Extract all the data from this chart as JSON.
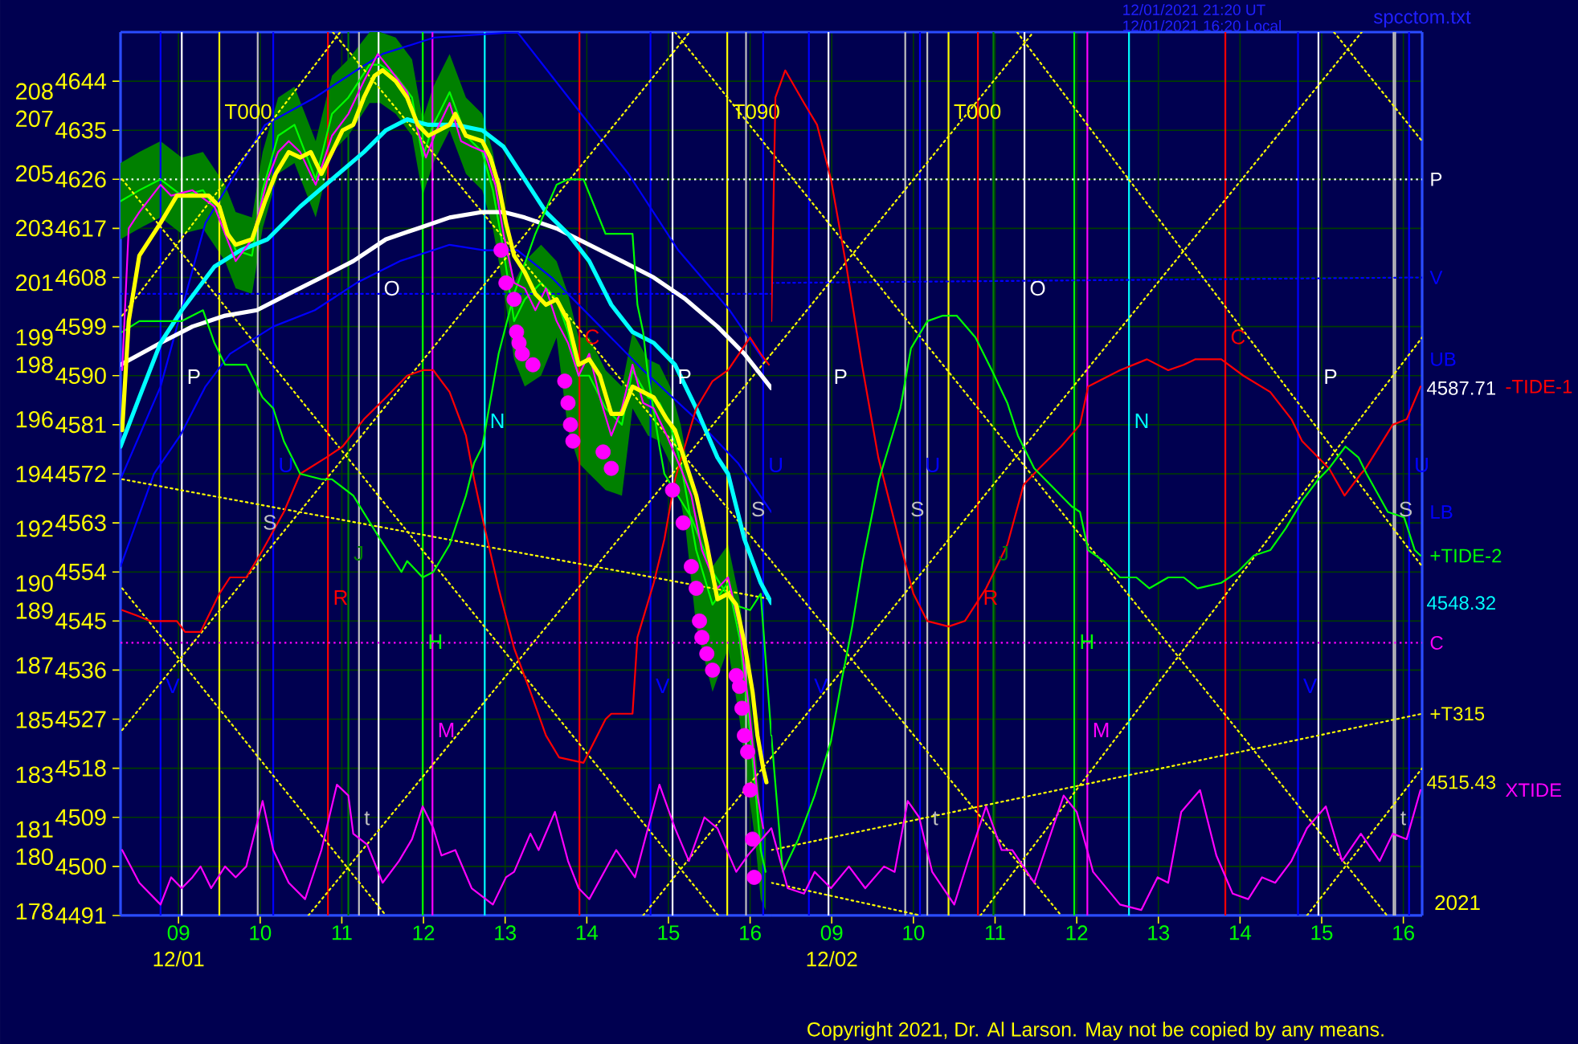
{
  "chart_data": [
    {
      "type": "line",
      "xlabel": "12/01",
      "xlim": [
        8.29,
        16.26
      ],
      "xticks": [
        {
          "value": 9,
          "label": "09"
        },
        10,
        11,
        12,
        13,
        14,
        15,
        16
      ],
      "ylim": [
        4491,
        4653
      ],
      "yticks": [
        4491,
        4500,
        4509,
        4518,
        4527,
        4536,
        4545,
        4554,
        4563,
        4572,
        4581,
        4590,
        4599,
        4608,
        4617,
        4626,
        4635,
        4644
      ],
      "y2lim": [
        177.85,
        210.17
      ],
      "y2ticks": [
        178,
        180,
        181,
        183,
        185,
        187,
        189,
        190,
        192,
        194,
        196,
        198,
        199,
        201,
        203,
        205,
        207,
        208
      ],
      "grid": true,
      "series": [
        {
          "color": "#00ff00",
          "x": [
            8.29,
            8.52,
            8.78,
            9.04,
            9.3,
            9.57,
            9.7,
            9.9,
            10.03,
            10.22,
            10.42,
            10.68,
            10.88,
            11.08,
            11.34,
            11.47,
            11.66,
            11.86,
            11.99,
            12.12,
            12.32,
            12.52,
            12.72,
            12.85,
            12.98,
            13.11,
            13.24,
            13.44,
            13.63,
            13.77,
            13.9,
            14.03,
            14.23,
            14.43,
            14.56,
            14.75,
            14.89,
            15.02,
            15.15,
            15.21,
            15.34,
            15.54,
            15.73,
            15.87,
            15.97,
            16.06,
            16.13,
            16.19
          ],
          "values": [
            4622,
            4624,
            4626,
            4623,
            4624,
            4618,
            4613,
            4612,
            4624,
            4634,
            4636,
            4626,
            4638,
            4641,
            4647,
            4647,
            4645,
            4641,
            4630,
            4636,
            4642,
            4634,
            4631,
            4624,
            4613,
            4600,
            4604,
            4607,
            4604,
            4598,
            4590,
            4590,
            4584,
            4581,
            4591,
            4586,
            4585,
            4581,
            4574,
            4569,
            4558,
            4548,
            4552,
            4542,
            4529,
            4515,
            4503,
            4499
          ],
          "lower": [
            4615,
            4617,
            4619,
            4616,
            4617,
            4611,
            4606,
            4605,
            4617,
            4627,
            4629,
            4619,
            4631,
            4634,
            4640,
            4640,
            4638,
            4634,
            4623,
            4629,
            4635,
            4627,
            4624,
            4617,
            4606,
            4593,
            4588,
            4590,
            4597,
            4580,
            4574,
            4572,
            4569,
            4568,
            4584,
            4579,
            4578,
            4574,
            4567,
            4562,
            4544,
            4532,
            4540,
            4527,
            4515,
            4505,
            4494,
            4492
          ],
          "upper": [
            4629,
            4631,
            4633,
            4630,
            4631,
            4625,
            4620,
            4619,
            4631,
            4641,
            4643,
            4633,
            4645,
            4648,
            4653,
            4653,
            4652,
            4648,
            4637,
            4643,
            4649,
            4641,
            4638,
            4631,
            4620,
            4607,
            4611,
            4614,
            4611,
            4605,
            4597,
            4597,
            4591,
            4588,
            4598,
            4593,
            4592,
            4588,
            4581,
            4576,
            4565,
            4555,
            4559,
            4549,
            4536,
            4522,
            4510,
            4506
          ]
        },
        {
          "name": "UB",
          "color": "#0000ff",
          "x": [
            8.29,
            8.78,
            9.33,
            10.06,
            10.67,
            11.18,
            11.5,
            12.13,
            13.15,
            13.88,
            14.51,
            15.12,
            15.75,
            16.16
          ],
          "values": [
            4571,
            4588,
            4618,
            4636,
            4641,
            4646,
            4649,
            4652,
            4653,
            4639,
            4627,
            4613,
            4602,
            4593
          ]
        },
        {
          "name": "LB",
          "color": "#0000ff",
          "x": [
            8.29,
            8.7,
            9.02,
            9.33,
            9.63,
            10.16,
            10.67,
            11.18,
            11.71,
            12.32,
            12.74,
            13.15,
            13.57,
            14.1,
            14.69,
            15.34,
            15.85,
            16.26
          ],
          "values": [
            4555,
            4572,
            4579,
            4588,
            4594,
            4599,
            4602,
            4607,
            4611,
            4614,
            4613,
            4613,
            4608,
            4600,
            4591,
            4582,
            4574,
            4565
          ]
        },
        {
          "color": "#0000ff",
          "line_style": "dotted",
          "x": [
            8.29,
            16.26
          ],
          "values": [
            4605,
            4605
          ]
        },
        {
          "color": "#ffff00",
          "line_style": "dotted",
          "x": [
            8.31,
            10.98
          ],
          "values": [
            4601,
            4653
          ]
        },
        {
          "color": "#ffff00",
          "line_style": "dotted",
          "x": [
            8.31,
            15.26
          ],
          "values": [
            4525,
            4653
          ]
        },
        {
          "color": "#ffff00",
          "line_style": "dotted",
          "x": [
            10.59,
            16.26
          ],
          "values": [
            4491,
            4594
          ]
        },
        {
          "color": "#ffff00",
          "line_style": "dotted",
          "x": [
            14.69,
            16.26
          ],
          "values": [
            4491,
            4520
          ]
        },
        {
          "color": "#ffff00",
          "line_style": "dotted",
          "x": [
            8.31,
            15.61
          ],
          "values": [
            4626,
            4491
          ]
        },
        {
          "color": "#ffff00",
          "line_style": "dotted",
          "x": [
            8.31,
            11.54
          ],
          "values": [
            4551,
            4491
          ]
        },
        {
          "color": "#ffff00",
          "line_style": "dotted",
          "x": [
            10.89,
            16.26
          ],
          "values": [
            4653,
            4556
          ]
        },
        {
          "color": "#ffff00",
          "line_style": "dotted",
          "x": [
            15.08,
            16.26
          ],
          "values": [
            4653,
            4631
          ]
        },
        {
          "color": "#ffff00",
          "line_style": "dotted",
          "x": [
            8.31,
            16.26
          ],
          "values": [
            4571,
            4549
          ]
        },
        {
          "color": "#ffffff",
          "x": [
            8.29,
            8.78,
            9.17,
            9.57,
            9.96,
            10.35,
            10.75,
            11.14,
            11.54,
            11.93,
            12.32,
            12.72,
            12.98,
            13.24,
            13.63,
            14.03,
            14.43,
            14.82,
            15.21,
            15.6,
            15.93,
            16.26
          ],
          "values": [
            4592,
            4596,
            4599,
            4601,
            4602,
            4605,
            4608,
            4611,
            4615,
            4617,
            4619,
            4620,
            4620,
            4619,
            4617,
            4614,
            4611,
            4608,
            4604,
            4599,
            4594,
            4587.71
          ]
        },
        {
          "color": "#00ffff",
          "x": [
            8.29,
            8.52,
            8.78,
            9.04,
            9.44,
            9.76,
            10.09,
            10.49,
            10.88,
            11.27,
            11.54,
            11.8,
            12.06,
            12.39,
            12.72,
            12.98,
            13.24,
            13.5,
            13.77,
            14.03,
            14.3,
            14.56,
            14.82,
            15.08,
            15.34,
            15.6,
            15.73,
            15.93,
            16.13,
            16.26
          ],
          "values": [
            4577,
            4586,
            4596,
            4602,
            4610,
            4613,
            4615,
            4621,
            4626,
            4631,
            4635,
            4637,
            4636,
            4636,
            4635,
            4632,
            4626,
            4620,
            4616,
            4611,
            4603,
            4598,
            4596,
            4592,
            4584,
            4575,
            4572,
            4560,
            4552,
            4548.32
          ]
        },
        {
          "color": "#ff0000",
          "x": [
            8.31,
            8.49,
            8.65,
            8.98,
            9.08,
            9.27,
            9.5,
            9.63,
            9.83,
            10.03,
            10.29,
            10.49,
            10.81,
            11.01,
            11.27,
            11.54,
            11.8,
            11.99,
            12.12,
            12.32,
            12.52,
            12.62,
            12.72,
            12.92,
            13.11,
            13.31,
            13.5,
            13.66,
            13.96,
            14.23,
            14.3,
            14.56,
            14.62,
            14.82,
            14.95,
            15.08,
            15.34,
            15.54,
            15.73,
            16.0,
            16.13,
            16.23
          ],
          "values": [
            4547,
            4546,
            4545,
            4545,
            4543,
            4543,
            4550,
            4553,
            4553,
            4558,
            4565,
            4572,
            4575,
            4577,
            4582,
            4586,
            4590,
            4591,
            4591,
            4587,
            4579,
            4571,
            4564,
            4551,
            4540,
            4532,
            4524,
            4520,
            4519,
            4527,
            4528,
            4528,
            4542,
            4552,
            4560,
            4571,
            4584,
            4589,
            4591,
            4597,
            4594,
            4592
          ]
        },
        {
          "color": "#00ff00",
          "x": [
            8.31,
            8.52,
            9.04,
            9.3,
            9.44,
            9.57,
            9.83,
            10.03,
            10.16,
            10.29,
            10.49,
            10.75,
            10.88,
            11.14,
            11.47,
            11.73,
            11.8,
            11.99,
            12.12,
            12.32,
            12.52,
            12.62,
            12.72,
            12.92,
            13.11,
            13.37,
            13.63,
            13.77,
            13.96,
            14.23,
            14.56,
            14.62,
            14.69,
            14.75,
            14.89,
            14.95,
            15.28,
            15.54,
            15.8,
            16.0,
            16.13,
            16.26
          ],
          "values": [
            4598,
            4600,
            4600,
            4602,
            4596,
            4592,
            4592,
            4586,
            4584,
            4578,
            4572,
            4571,
            4571,
            4568,
            4560,
            4554,
            4556,
            4553,
            4554,
            4559,
            4568,
            4574,
            4577,
            4594,
            4605,
            4616,
            4625,
            4626,
            4626,
            4616,
            4616,
            4603,
            4598,
            4590,
            4577,
            4572,
            4564,
            4554,
            4548,
            4547,
            4550,
            4524
          ]
        },
        {
          "color": "#ff00ff",
          "x": [
            8.31,
            8.52,
            8.78,
            8.91,
            9.04,
            9.17,
            9.27,
            9.4,
            9.57,
            9.7,
            9.83,
            10.03,
            10.16,
            10.35,
            10.55,
            10.75,
            10.94,
            11.08,
            11.14,
            11.31,
            11.5,
            11.7,
            11.86,
            11.99,
            12.12,
            12.22,
            12.39,
            12.59,
            12.85,
            13.01,
            13.11,
            13.31,
            13.41,
            13.61,
            13.77,
            13.9,
            14.03,
            14.36,
            14.59,
            14.89,
            15.08,
            15.25,
            15.44,
            15.6,
            15.83,
            15.97,
            16.26
          ],
          "values": [
            4503,
            4497,
            4493,
            4498,
            4496,
            4498,
            4500,
            4496,
            4500,
            4498,
            4500,
            4512,
            4503,
            4497,
            4494,
            4503,
            4515,
            4513,
            4506,
            4504,
            4497,
            4501,
            4505,
            4511,
            4507,
            4502,
            4503,
            4496,
            4493,
            4498,
            4499,
            4506,
            4503,
            4510,
            4501,
            4496,
            4494,
            4503,
            4498,
            4515,
            4507,
            4501,
            4509,
            4507,
            4499,
            4502,
            4507
          ]
        },
        {
          "color": "#ff00ff",
          "x": [
            8.31,
            8.39,
            8.52,
            8.78,
            8.91,
            9.17,
            9.44,
            9.57,
            9.7,
            9.9,
            10.09,
            10.22,
            10.35,
            10.49,
            10.68,
            10.88,
            11.08,
            11.27,
            11.44,
            11.6,
            11.8,
            11.93,
            12.03,
            12.16,
            12.32,
            12.46,
            12.59,
            12.75,
            12.88,
            12.98,
            13.11,
            13.24,
            13.37,
            13.5,
            13.63,
            13.77,
            13.9,
            14.03,
            14.16,
            14.3,
            14.43,
            14.56,
            14.69,
            14.82,
            14.98,
            15.15,
            15.28,
            15.41,
            15.6,
            15.73,
            15.87,
            16.0,
            16.09,
            16.16
          ],
          "values": [
            4591,
            4617,
            4620,
            4625,
            4623,
            4624,
            4621,
            4616,
            4611,
            4615,
            4626,
            4631,
            4633,
            4631,
            4625,
            4634,
            4638,
            4644,
            4649,
            4646,
            4642,
            4635,
            4630,
            4635,
            4640,
            4633,
            4632,
            4631,
            4625,
            4616,
            4607,
            4606,
            4602,
            4606,
            4600,
            4596,
            4590,
            4594,
            4586,
            4579,
            4584,
            4592,
            4585,
            4584,
            4579,
            4573,
            4568,
            4558,
            4551,
            4553,
            4544,
            4527,
            4513,
            4507
          ]
        },
        {
          "type": "scatter",
          "marker": "circle",
          "color": "#ff00ff",
          "x": [
            12.95,
            13.01,
            13.11,
            13.14,
            13.17,
            13.21,
            13.34,
            13.73,
            13.77,
            13.8,
            13.83,
            14.2,
            14.3,
            15.05,
            15.18,
            15.28,
            15.34,
            15.38,
            15.41,
            15.47,
            15.54,
            15.83,
            15.87,
            15.9,
            15.93,
            15.97,
            16.0,
            16.03,
            16.05
          ],
          "values": [
            4613,
            4607,
            4604,
            4598,
            4596,
            4594,
            4592,
            4589,
            4585,
            4581,
            4578,
            4576,
            4573,
            4569,
            4563,
            4555,
            4551,
            4545,
            4542,
            4539,
            4536,
            4535,
            4533,
            4529,
            4524,
            4521,
            4514,
            4505,
            4498
          ]
        },
        {
          "color": "#ffff00",
          "x": [
            8.31,
            8.39,
            8.52,
            8.78,
            8.98,
            9.17,
            9.37,
            9.5,
            9.6,
            9.7,
            9.9,
            10.06,
            10.19,
            10.35,
            10.49,
            10.62,
            10.75,
            10.88,
            11.01,
            11.14,
            11.27,
            11.4,
            11.5,
            11.66,
            11.8,
            11.93,
            12.06,
            12.19,
            12.32,
            12.39,
            12.52,
            12.72,
            12.82,
            12.92,
            13.01,
            13.11,
            13.24,
            13.37,
            13.5,
            13.63,
            13.77,
            13.9,
            14.03,
            14.16,
            14.3,
            14.43,
            14.56,
            14.69,
            14.82,
            14.98,
            15.08,
            15.21,
            15.34,
            15.47,
            15.6,
            15.73,
            15.83,
            15.93,
            16.03,
            16.09,
            16.16,
            16.2
          ],
          "values": [
            4580,
            4600,
            4612,
            4618,
            4623,
            4623,
            4623,
            4621,
            4616,
            4614,
            4615,
            4622,
            4627,
            4631,
            4630,
            4631,
            4627,
            4631,
            4635,
            4636,
            4641,
            4645,
            4646,
            4644,
            4641,
            4636,
            4634,
            4635,
            4636,
            4638,
            4634,
            4633,
            4630,
            4625,
            4618,
            4612,
            4609,
            4605,
            4603,
            4604,
            4600,
            4592,
            4593,
            4590,
            4583,
            4583,
            4588,
            4587,
            4586,
            4582,
            4580,
            4574,
            4568,
            4559,
            4549,
            4550,
            4548,
            4541,
            4532,
            4524,
            4518,
            4515.43
          ]
        }
      ],
      "ref_lines": [
        {
          "axis": "x",
          "value": 8.78,
          "label": "V",
          "color": "#0000ff"
        },
        {
          "axis": "x",
          "value": 9.04,
          "label": "P",
          "color": "#ffffff"
        },
        {
          "axis": "x",
          "value": 9.5,
          "label": "T000",
          "color": "#ffff00"
        },
        {
          "axis": "x",
          "value": 9.97,
          "label": "S",
          "color": "#c0c0c0"
        },
        {
          "axis": "x",
          "value": 10.16,
          "label": "U",
          "color": "#0000ff"
        },
        {
          "axis": "x",
          "value": 10.83,
          "label": "R",
          "color": "#ff0000"
        },
        {
          "axis": "x",
          "value": 11.08,
          "label": "J",
          "color": "#008000"
        },
        {
          "axis": "x",
          "value": 11.21,
          "label": "t",
          "color": "#c0c0c0"
        },
        {
          "axis": "x",
          "value": 11.45,
          "label": "O",
          "color": "#ffffff"
        },
        {
          "axis": "x",
          "value": 11.99,
          "label": "H",
          "color": "#00ff00"
        },
        {
          "axis": "x",
          "value": 12.11,
          "label": "M",
          "color": "#ff00ff"
        },
        {
          "axis": "x",
          "value": 12.75,
          "label": "N",
          "color": "#00ffff"
        },
        {
          "axis": "x",
          "value": 13.91,
          "label": "C",
          "color": "#ff0000"
        },
        {
          "axis": "x",
          "value": 14.78,
          "label": "V",
          "color": "#0000ff"
        },
        {
          "axis": "x",
          "value": 15.05,
          "label": "P",
          "color": "#ffffff"
        },
        {
          "axis": "x",
          "value": 15.72,
          "label": "T090",
          "color": "#ffff00"
        },
        {
          "axis": "x",
          "value": 15.95,
          "label": "S",
          "color": "#c0c0c0"
        },
        {
          "axis": "x",
          "value": 16.16,
          "label": "U",
          "color": "#0000ff"
        },
        {
          "axis": "y",
          "value": 4626,
          "color": "#ffffff",
          "line_style": "dotted"
        },
        {
          "axis": "y",
          "value": 4541,
          "color": "#ff00ff",
          "line_style": "dotted"
        }
      ]
    },
    {
      "type": "line",
      "xlabel": "12/02",
      "annotations": [
        "12/01/2021 21:20 UT",
        "12/01/2021 16:20 Local",
        "spcctom.txt",
        "Copyright 2021, Dr. Al Larson. May not be copied by any means.",
        "2021"
      ],
      "xlim": [
        8.26,
        16.23
      ],
      "xticks": [
        {
          "value": 9,
          "label": "09"
        },
        10,
        11,
        12,
        13,
        14,
        15,
        16
      ],
      "ylim": [
        4491,
        4653
      ],
      "yticks": [
        4491,
        4500,
        4509,
        4518,
        4527,
        4536,
        4545,
        4554,
        4563,
        4572,
        4581,
        4590,
        4599,
        4608,
        4617,
        4626,
        4635,
        4644
      ],
      "y2lim": [
        4515.43,
        4587.71
      ],
      "y2ticks": [
        {
          "value": 4515.43,
          "label": "4515.43"
        },
        {
          "value": 4548.32,
          "label": "4548.32"
        },
        {
          "value": 4587.71,
          "label": "4587.71"
        }
      ],
      "tick_labels": "x",
      "grid": true,
      "series": [
        {
          "name": "V",
          "color": "#0000ff",
          "line_style": "dotted",
          "x": [
            8.26,
            16.23
          ],
          "values": [
            4607,
            4608
          ]
        },
        {
          "color": "#ffff00",
          "line_style": "dotted",
          "x": [
            8.26,
            11.47
          ],
          "values": [
            4594,
            4653
          ]
        },
        {
          "color": "#ffff00",
          "line_style": "dotted",
          "x": [
            8.26,
            15.49
          ],
          "values": [
            4520,
            4653
          ]
        },
        {
          "color": "#ffff00",
          "line_style": "dotted",
          "x": [
            10.82,
            16.23
          ],
          "values": [
            4491,
            4597
          ]
        },
        {
          "color": "#ffff00",
          "line_style": "dotted",
          "x": [
            14.82,
            16.23
          ],
          "values": [
            4491,
            4518
          ]
        },
        {
          "color": "#ffff00",
          "line_style": "dotted",
          "x": [
            8.26,
            11.81
          ],
          "values": [
            4556,
            4491
          ]
        },
        {
          "color": "#ffff00",
          "line_style": "dotted",
          "x": [
            8.26,
            15.8
          ],
          "values": [
            4631,
            4491
          ]
        },
        {
          "color": "#ffff00",
          "line_style": "dotted",
          "x": [
            11.27,
            16.23
          ],
          "values": [
            4653,
            4555
          ]
        },
        {
          "color": "#ffff00",
          "line_style": "dotted",
          "x": [
            15.15,
            16.23
          ],
          "values": [
            4653,
            4633
          ]
        },
        {
          "color": "#ffff00",
          "line_style": "dotted",
          "x": [
            8.26,
            10.09
          ],
          "values": [
            4497,
            4491
          ]
        },
        {
          "name": "+T315",
          "color": "#ffff00",
          "line_style": "dotted",
          "x": [
            8.26,
            16.23
          ],
          "values": [
            4503,
            4528
          ]
        },
        {
          "name": "-TIDE-1",
          "color": "#ff0000",
          "x": [
            8.26,
            8.31,
            8.43,
            8.66,
            8.82,
            8.99,
            9.18,
            9.37,
            9.57,
            9.84,
            10.0,
            10.17,
            10.43,
            10.63,
            10.89,
            11.15,
            11.35,
            11.54,
            11.81,
            12.04,
            12.14,
            12.4,
            12.53,
            12.86,
            12.99,
            13.12,
            13.31,
            13.45,
            13.77,
            14.04,
            14.37,
            14.63,
            14.76,
            15.09,
            15.28,
            15.48,
            15.54,
            15.87,
            16.04,
            16.21
          ],
          "values": [
            4600,
            4641,
            4646,
            4640,
            4636,
            4626,
            4610,
            4592,
            4575,
            4559,
            4550,
            4545,
            4544,
            4545,
            4551,
            4559,
            4570,
            4573,
            4577,
            4581,
            4588,
            4590,
            4591,
            4593,
            4592,
            4591,
            4592,
            4593,
            4593,
            4590,
            4587,
            4582,
            4578,
            4573,
            4568,
            4572,
            4573,
            4581,
            4582,
            4588
          ]
        },
        {
          "name": "+TIDE-2",
          "color": "#00ff00",
          "x": [
            8.26,
            8.4,
            8.59,
            8.79,
            8.99,
            9.12,
            9.25,
            9.38,
            9.58,
            9.84,
            9.97,
            10.17,
            10.36,
            10.53,
            10.76,
            10.96,
            11.15,
            11.28,
            11.48,
            11.61,
            11.94,
            12.04,
            12.14,
            12.33,
            12.53,
            12.73,
            12.89,
            13.12,
            13.31,
            13.48,
            13.77,
            13.97,
            14.17,
            14.37,
            14.56,
            14.76,
            14.96,
            15.09,
            15.29,
            15.45,
            15.55,
            15.81,
            16.01,
            16.14,
            16.21
          ],
          "values": [
            4524,
            4499,
            4505,
            4513,
            4523,
            4534,
            4544,
            4556,
            4571,
            4584,
            4595,
            4600,
            4601,
            4601,
            4597,
            4591,
            4585,
            4579,
            4573,
            4571,
            4566,
            4565,
            4558,
            4556,
            4553,
            4553,
            4551,
            4553,
            4553,
            4551,
            4552,
            4554,
            4557,
            4558,
            4562,
            4567,
            4571,
            4573,
            4577,
            4575,
            4572,
            4565,
            4564,
            4558,
            4557
          ]
        },
        {
          "name": "XTIDE",
          "color": "#ff00ff",
          "x": [
            8.26,
            8.46,
            8.66,
            8.79,
            8.99,
            9.21,
            9.41,
            9.64,
            9.77,
            9.93,
            10.07,
            10.23,
            10.5,
            10.69,
            10.89,
            11.08,
            11.21,
            11.48,
            11.84,
            12.0,
            12.2,
            12.53,
            12.79,
            12.99,
            13.12,
            13.28,
            13.51,
            13.71,
            13.91,
            14.1,
            14.27,
            14.43,
            14.63,
            14.82,
            15.05,
            15.25,
            15.48,
            15.71,
            15.87,
            16.04,
            16.21
          ],
          "values": [
            4507,
            4496,
            4495,
            4499,
            4496,
            4500,
            4496,
            4500,
            4499,
            4512,
            4509,
            4499,
            4493,
            4502,
            4511,
            4503,
            4503,
            4497,
            4513,
            4510,
            4499,
            4493,
            4492,
            4498,
            4497,
            4510,
            4514,
            4502,
            4495,
            4494,
            4498,
            4497,
            4501,
            4507,
            4511,
            4501,
            4506,
            4501,
            4506,
            4505,
            4514
          ]
        }
      ],
      "ref_lines": [
        {
          "axis": "x",
          "value": 8.72,
          "label": "V",
          "color": "#0000ff"
        },
        {
          "axis": "x",
          "value": 8.96,
          "label": "P",
          "color": "#ffffff"
        },
        {
          "axis": "x",
          "value": 9.9,
          "label": "S",
          "color": "#c0c0c0"
        },
        {
          "axis": "x",
          "value": 10.08,
          "label": "U",
          "color": "#0000ff"
        },
        {
          "axis": "x",
          "value": 10.17,
          "label": "t",
          "color": "#c0c0c0"
        },
        {
          "axis": "x",
          "value": 10.43,
          "label": "T000",
          "color": "#ffff00"
        },
        {
          "axis": "x",
          "value": 10.79,
          "label": "R",
          "color": "#ff0000"
        },
        {
          "axis": "x",
          "value": 10.98,
          "label": "J",
          "color": "#008000"
        },
        {
          "axis": "x",
          "value": 11.36,
          "label": "O",
          "color": "#ffffff"
        },
        {
          "axis": "x",
          "value": 11.97,
          "label": "H",
          "color": "#00ff00"
        },
        {
          "axis": "x",
          "value": 12.13,
          "label": "M",
          "color": "#ff00ff"
        },
        {
          "axis": "x",
          "value": 12.64,
          "label": "N",
          "color": "#00ffff"
        },
        {
          "axis": "x",
          "value": 13.82,
          "label": "C",
          "color": "#ff0000"
        },
        {
          "axis": "x",
          "value": 14.71,
          "label": "V",
          "color": "#0000ff"
        },
        {
          "axis": "x",
          "value": 14.96,
          "label": "P",
          "color": "#ffffff"
        },
        {
          "axis": "x",
          "value": 15.88,
          "label": "S",
          "color": "#c0c0c0"
        },
        {
          "axis": "x",
          "value": 15.9,
          "label": "t",
          "color": "#c0c0c0"
        },
        {
          "axis": "x",
          "value": 16.07,
          "label": "U",
          "color": "#0000ff"
        },
        {
          "axis": "y",
          "value": 4626,
          "label": "P",
          "color": "#ffffff",
          "line_style": "dotted"
        },
        {
          "axis": "y",
          "value": 4541,
          "label": "C",
          "color": "#ff00ff",
          "line_style": "dotted"
        }
      ]
    }
  ]
}
